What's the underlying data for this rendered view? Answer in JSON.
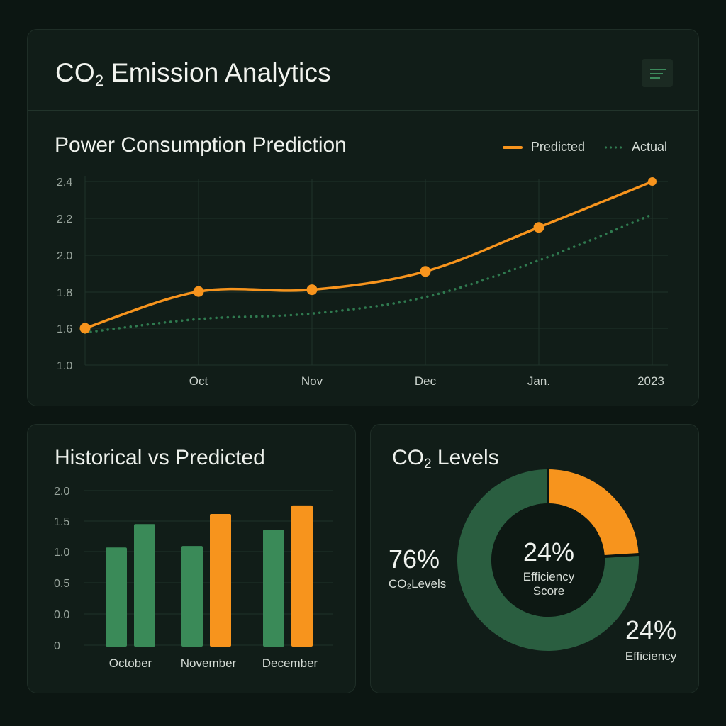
{
  "header": {
    "title_main": "CO",
    "title_sub": "2",
    "title_rest": " Emission Analytics"
  },
  "line_panel": {
    "title": "Power Consumption Prediction",
    "legend": [
      {
        "label": "Predicted",
        "style": "solid",
        "color": "#f7941d"
      },
      {
        "label": "Actual",
        "style": "dotted",
        "color": "#2f7a4f"
      }
    ]
  },
  "bar_panel": {
    "title": "Historical vs Predicted"
  },
  "donut_panel": {
    "title_main": "CO",
    "title_sub": "2",
    "title_rest": " Levels",
    "left_pct": "76%",
    "left_caption": "CO₂Levels",
    "center_pct": "24%",
    "center_caption_1": "Efficiency",
    "center_caption_2": "Score",
    "right_pct": "24%",
    "right_caption": "Efficiency"
  },
  "colors": {
    "orange": "#f7941d",
    "green": "#2f7a4f",
    "bar_green": "#3a8a58",
    "donut_green": "#2a5e40",
    "grid": "#1f322a",
    "tick": "#9aa69e"
  },
  "chart_data": [
    {
      "type": "line",
      "title": "Power Consumption Prediction",
      "x": [
        "",
        "Oct",
        "Nov",
        "Dec",
        "Jan.",
        "2023"
      ],
      "yticks": [
        1.0,
        1.6,
        1.8,
        2.0,
        2.2,
        2.4
      ],
      "series": [
        {
          "name": "Predicted",
          "values": [
            1.6,
            1.8,
            1.81,
            1.91,
            2.15,
            2.4
          ]
        },
        {
          "name": "Actual",
          "values": [
            1.53,
            1.65,
            1.68,
            1.77,
            1.97,
            2.22
          ]
        }
      ],
      "grid": true,
      "legend_position": "top-right"
    },
    {
      "type": "bar",
      "title": "Historical vs Predicted",
      "categories": [
        "October",
        "November",
        "December"
      ],
      "yticks": [
        "2.0",
        "1.5",
        "1.0",
        "0.5",
        "0.0",
        "0"
      ],
      "series": [
        {
          "values": [
            1.27,
            1.29,
            1.5
          ]
        },
        {
          "values": [
            1.57,
            1.7,
            1.81
          ]
        }
      ],
      "ylim": [
        0,
        2.0
      ],
      "grid": true
    },
    {
      "type": "pie",
      "title": "CO₂ Levels",
      "labels": [
        "CO₂Levels",
        "Efficiency"
      ],
      "values": [
        76,
        24
      ],
      "donut": true
    }
  ]
}
